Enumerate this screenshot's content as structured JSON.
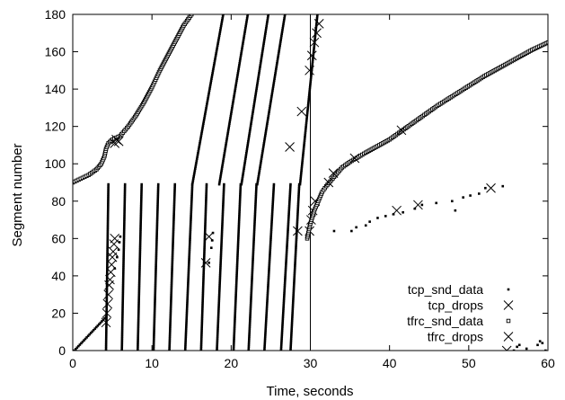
{
  "chart_data": {
    "type": "scatter",
    "xlabel": "Time, seconds",
    "ylabel": "Segment number",
    "xlim": [
      0,
      60
    ],
    "ylim": [
      0,
      180
    ],
    "xticks": [
      "0",
      "10",
      "20",
      "30",
      "40",
      "50",
      "60"
    ],
    "yticks": [
      "0",
      "20",
      "40",
      "60",
      "80",
      "100",
      "120",
      "140",
      "160",
      "180"
    ],
    "grid": false,
    "legend_position": "bottom-right",
    "vertical_line_x": 30,
    "series": [
      {
        "name": "tcp_snd_data",
        "marker": "small-filled-square",
        "segments": [
          {
            "x": [
              0.2,
              4.2
            ],
            "y": [
              0,
              18
            ]
          },
          {
            "x": [
              4.2,
              4.5
            ],
            "y": [
              0,
              89
            ]
          },
          {
            "x": [
              6.2,
              6.6
            ],
            "y": [
              0,
              89
            ]
          },
          {
            "x": [
              8.2,
              8.7
            ],
            "y": [
              0,
              89
            ]
          },
          {
            "x": [
              10.2,
              10.8
            ],
            "y": [
              0,
              89
            ]
          },
          {
            "x": [
              12.2,
              12.9
            ],
            "y": [
              0,
              89
            ]
          },
          {
            "x": [
              14.2,
              15.1
            ],
            "y": [
              0,
              89
            ]
          },
          {
            "x": [
              16.2,
              16.9
            ],
            "y": [
              0,
              89
            ]
          },
          {
            "x": [
              18.2,
              19.1
            ],
            "y": [
              0,
              89
            ]
          },
          {
            "x": [
              20.3,
              21.2
            ],
            "y": [
              0,
              89
            ]
          },
          {
            "x": [
              22.2,
              23.2
            ],
            "y": [
              0,
              89
            ]
          },
          {
            "x": [
              24.2,
              25.4
            ],
            "y": [
              0,
              89
            ]
          },
          {
            "x": [
              26.3,
              27.5
            ],
            "y": [
              0,
              89
            ]
          },
          {
            "x": [
              27.5,
              28.6
            ],
            "y": [
              0,
              89
            ]
          },
          {
            "x": [
              15.1,
              19.0
            ],
            "y": [
              89,
              180
            ]
          },
          {
            "x": [
              18.5,
              22.1
            ],
            "y": [
              89,
              180
            ]
          },
          {
            "x": [
              21.3,
              24.7
            ],
            "y": [
              89,
              180
            ]
          },
          {
            "x": [
              23.3,
              26.8
            ],
            "y": [
              89,
              180
            ]
          },
          {
            "x": [
              28.7,
              30.9
            ],
            "y": [
              89,
              180
            ]
          }
        ],
        "points": {
          "x": [
            5.3,
            5.6,
            5.8,
            5.9,
            6.0,
            17.2,
            17.5,
            17.6,
            17.7,
            33.0,
            35.2,
            35.8,
            37.0,
            37.5,
            38.5,
            39.5,
            40.5,
            41.7,
            43.2,
            44.1,
            45.9,
            47.9,
            48.3,
            49.3,
            50.2,
            51.3,
            52.1,
            54.3,
            55.7,
            56.1,
            56.4,
            57.3,
            58.7,
            59.0,
            59.3,
            59.7
          ],
          "y": [
            44,
            50,
            54,
            58,
            61,
            47,
            55,
            59,
            63,
            64,
            64,
            66,
            67,
            69,
            71,
            72,
            73,
            74,
            76,
            78,
            79,
            80,
            75,
            82,
            83,
            84,
            87,
            88,
            0,
            2,
            3,
            1,
            3,
            5,
            4,
            0
          ]
        }
      },
      {
        "name": "tcp_drops",
        "marker": "x",
        "x": [
          4.2,
          4.3,
          4.4,
          4.5,
          4.6,
          4.7,
          4.8,
          4.9,
          5.0,
          5.1,
          5.2,
          5.3,
          16.8,
          17.2,
          28.4,
          29.9,
          30.1,
          30.3,
          30.6,
          40.9,
          43.6,
          52.8
        ],
        "y": [
          15,
          20,
          25,
          30,
          35,
          38,
          42,
          46,
          50,
          53,
          57,
          60,
          47,
          61,
          64,
          64,
          70,
          75,
          80,
          75,
          78,
          87
        ]
      },
      {
        "name": "tfrc_snd_data",
        "marker": "small-open-square",
        "segments": [
          {
            "x": [
              0,
              1,
              2,
              3,
              3.6,
              4.0,
              4.2,
              4.5,
              5.0,
              6.0,
              7.0,
              8.0,
              9.0,
              10.0,
              11.0,
              12.0,
              13.0,
              14.0,
              15.0
            ],
            "y": [
              90,
              92,
              94,
              97,
              100,
              104,
              108,
              111,
              113,
              115,
              120,
              126,
              133,
              141,
              150,
              158,
              166,
              174,
              180
            ]
          },
          {
            "x": [
              29.6,
              30.0,
              30.5,
              31.0,
              31.5,
              32.0,
              33.0,
              34.0,
              35.0,
              37.0,
              40.0,
              43.0,
              46.0,
              49.0,
              52.0,
              55.0,
              58.0,
              60.0
            ],
            "y": [
              60,
              68,
              75,
              80,
              85,
              88,
              93,
              98,
              101,
              106,
              113,
              122,
              131,
              139,
              147,
              154,
              161,
              165
            ]
          }
        ]
      },
      {
        "name": "tfrc_drops",
        "marker": "x",
        "x": [
          5.3,
          5.5,
          5.8,
          28.9,
          27.4,
          29.9,
          30.2,
          30.5,
          30.8,
          31.1,
          32.3,
          32.9,
          35.6,
          41.5,
          54.8
        ],
        "y": [
          111,
          113,
          112,
          128,
          109,
          150,
          158,
          165,
          170,
          175,
          90,
          95,
          103,
          118,
          0
        ]
      }
    ]
  }
}
